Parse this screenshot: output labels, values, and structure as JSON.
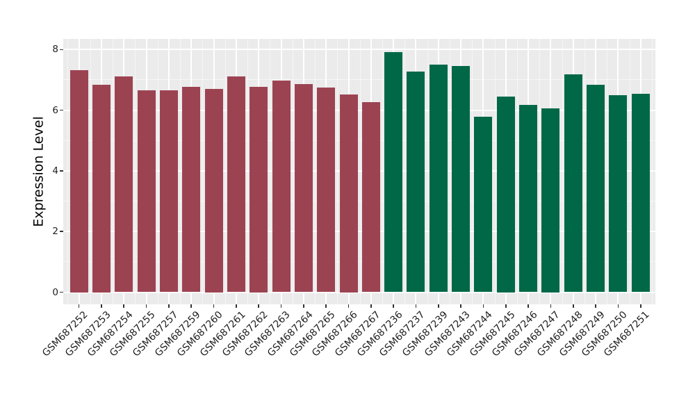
{
  "chart_data": {
    "type": "bar",
    "title": "",
    "xlabel": "",
    "ylabel": "Expression Level",
    "ylim": [
      0,
      8
    ],
    "yticks_major": [
      0,
      2,
      4,
      6,
      8
    ],
    "yticks_minor": [
      1,
      3,
      5,
      7
    ],
    "grid": "on",
    "legend": "none",
    "panel_background": "#EBEBEB",
    "gridline_color": "#FFFFFF",
    "tick_color": "#333333",
    "categories": [
      "GSM687252",
      "GSM687253",
      "GSM687254",
      "GSM687255",
      "GSM687257",
      "GSM687259",
      "GSM687260",
      "GSM687261",
      "GSM687262",
      "GSM687263",
      "GSM687264",
      "GSM687265",
      "GSM687266",
      "GSM687267",
      "GSM687236",
      "GSM687237",
      "GSM687239",
      "GSM687243",
      "GSM687244",
      "GSM687245",
      "GSM687246",
      "GSM687247",
      "GSM687248",
      "GSM687249",
      "GSM687250",
      "GSM687251"
    ],
    "series": [
      {
        "name": "red-group",
        "color": "#9C4352",
        "categories": [
          "GSM687252",
          "GSM687253",
          "GSM687254",
          "GSM687255",
          "GSM687257",
          "GSM687259",
          "GSM687260",
          "GSM687261",
          "GSM687262",
          "GSM687263",
          "GSM687264",
          "GSM687265",
          "GSM687266",
          "GSM687267"
        ],
        "values": [
          7.33,
          6.85,
          7.11,
          6.65,
          6.66,
          6.76,
          6.7,
          7.11,
          6.77,
          6.98,
          6.86,
          6.75,
          6.53,
          6.27
        ]
      },
      {
        "name": "green-group",
        "color": "#006847",
        "categories": [
          "GSM687236",
          "GSM687237",
          "GSM687239",
          "GSM687243",
          "GSM687244",
          "GSM687245",
          "GSM687246",
          "GSM687247",
          "GSM687248",
          "GSM687249",
          "GSM687250",
          "GSM687251"
        ],
        "values": [
          7.91,
          7.27,
          7.5,
          7.45,
          5.79,
          6.46,
          6.17,
          6.07,
          7.19,
          6.83,
          6.49,
          6.55
        ]
      }
    ]
  }
}
